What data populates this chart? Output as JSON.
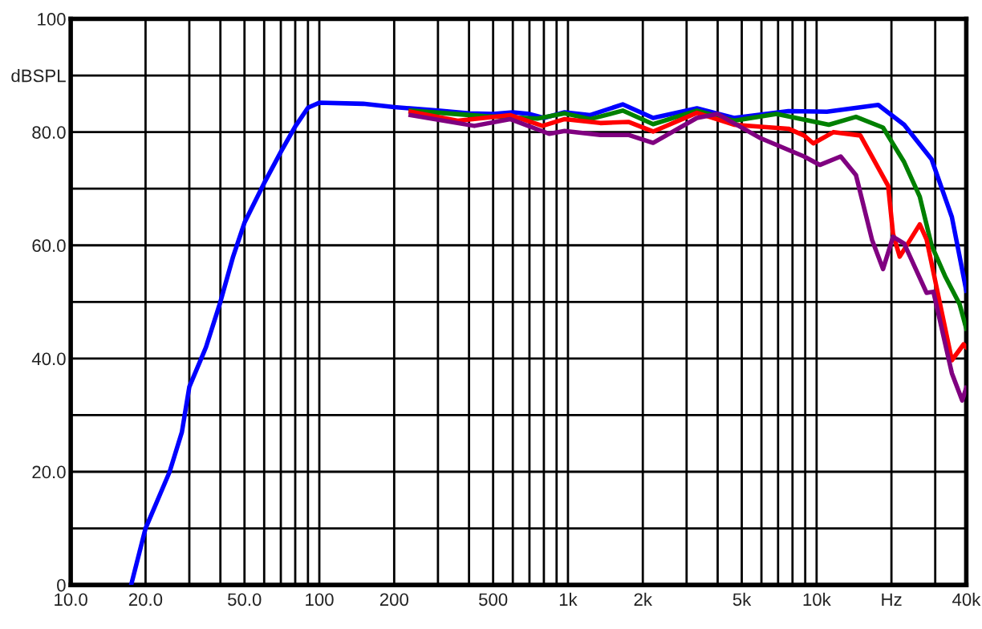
{
  "chart_data": {
    "type": "line",
    "xlim": [
      10,
      40000
    ],
    "ylim": [
      0,
      100
    ],
    "log": "x",
    "grid": true,
    "legend": false,
    "marker": "none",
    "line_style": "solid",
    "xticks": [
      {
        "value": 10,
        "label": "10.0"
      },
      {
        "value": 20,
        "label": "20.0"
      },
      {
        "value": 30,
        "label": null
      },
      {
        "value": 40,
        "label": null
      },
      {
        "value": 50,
        "label": "50.0"
      },
      {
        "value": 60,
        "label": null
      },
      {
        "value": 70,
        "label": null
      },
      {
        "value": 80,
        "label": null
      },
      {
        "value": 90,
        "label": null
      },
      100,
      200,
      {
        "value": 300,
        "label": null
      },
      {
        "value": 400,
        "label": null
      },
      500,
      {
        "value": 600,
        "label": null
      },
      {
        "value": 700,
        "label": null
      },
      {
        "value": 800,
        "label": null
      },
      {
        "value": 900,
        "label": null
      },
      {
        "value": 1000,
        "label": "1k"
      },
      {
        "value": 2000,
        "label": "2k"
      },
      {
        "value": 3000,
        "label": null
      },
      {
        "value": 4000,
        "label": null
      },
      {
        "value": 5000,
        "label": "5k"
      },
      {
        "value": 6000,
        "label": null
      },
      {
        "value": 7000,
        "label": null
      },
      {
        "value": 8000,
        "label": null
      },
      {
        "value": 9000,
        "label": null
      },
      {
        "value": 10000,
        "label": "10k"
      },
      {
        "value": 20000,
        "label": "Hz"
      },
      {
        "value": 30000,
        "label": null
      },
      {
        "value": 40000,
        "label": "40k"
      }
    ],
    "yticks": [
      0,
      {
        "value": 10,
        "label": null
      },
      {
        "value": 20,
        "label": "20.0"
      },
      {
        "value": 30,
        "label": null
      },
      {
        "value": 40,
        "label": "40.0"
      },
      {
        "value": 50,
        "label": null
      },
      {
        "value": 60,
        "label": "60.0"
      },
      {
        "value": 70,
        "label": null
      },
      {
        "value": 80,
        "label": "80.0"
      },
      {
        "value": 90,
        "label": "dBSPL"
      },
      100
    ],
    "series": [
      {
        "color": "#0000ff",
        "x": [
          17.5,
          20,
          25,
          28,
          30,
          35,
          40,
          45,
          50,
          60,
          70,
          80,
          90,
          100,
          150,
          200,
          300,
          400,
          500,
          600,
          700,
          800,
          970,
          1230,
          1660,
          2200,
          3300,
          4650,
          7700,
          11000,
          17700,
          22500,
          29000,
          35000,
          40000
        ],
        "values": [
          0,
          10,
          20,
          27,
          35,
          42,
          50,
          58,
          64,
          71,
          76.5,
          81,
          84.3,
          85.2,
          85,
          84.4,
          83.8,
          83.3,
          83.2,
          83.5,
          83.2,
          82.5,
          83.5,
          83,
          84.9,
          82.5,
          84.2,
          82.5,
          83.7,
          83.6,
          84.8,
          81.3,
          75.2,
          65,
          52
        ]
      },
      {
        "color": "#008000",
        "x": [
          233,
          464,
          754,
          970,
          1230,
          1660,
          2200,
          3300,
          4650,
          6900,
          11200,
          14400,
          18500,
          22500,
          26000,
          29000,
          33000,
          37600,
          40000
        ],
        "values": [
          83.8,
          82.8,
          82.4,
          83.3,
          82.3,
          83.8,
          81.4,
          83.8,
          82,
          83.2,
          81.3,
          82.7,
          80.8,
          74.7,
          68.6,
          60,
          54.4,
          49.6,
          45.3
        ]
      },
      {
        "color": "#ff0000",
        "x": [
          233,
          360,
          585,
          790,
          970,
          1350,
          1750,
          2200,
          3300,
          4650,
          7700,
          8900,
          9700,
          11700,
          15000,
          19400,
          20300,
          21600,
          26000,
          27700,
          35000,
          39000,
          40000
        ],
        "values": [
          83.6,
          82,
          83,
          81.1,
          82.3,
          81.6,
          81.8,
          80.1,
          83.4,
          81.3,
          80.6,
          79.4,
          78,
          80,
          79.4,
          70.5,
          62,
          58,
          63.7,
          61,
          39.7,
          42.5,
          42
        ]
      },
      {
        "color": "#800080",
        "x": [
          233,
          420,
          585,
          840,
          970,
          1350,
          1750,
          2200,
          3300,
          4000,
          5900,
          8900,
          10300,
          12500,
          14400,
          16700,
          18500,
          20300,
          22500,
          27700,
          29500,
          35000,
          38500,
          40000
        ],
        "values": [
          83,
          81.1,
          82.3,
          79.7,
          80.2,
          79.5,
          79.5,
          78.1,
          82.5,
          83.2,
          79,
          75.7,
          74.2,
          75.7,
          72.4,
          61,
          55.8,
          61.5,
          60.3,
          51.6,
          51.8,
          37.4,
          32.6,
          34.8
        ]
      }
    ]
  }
}
